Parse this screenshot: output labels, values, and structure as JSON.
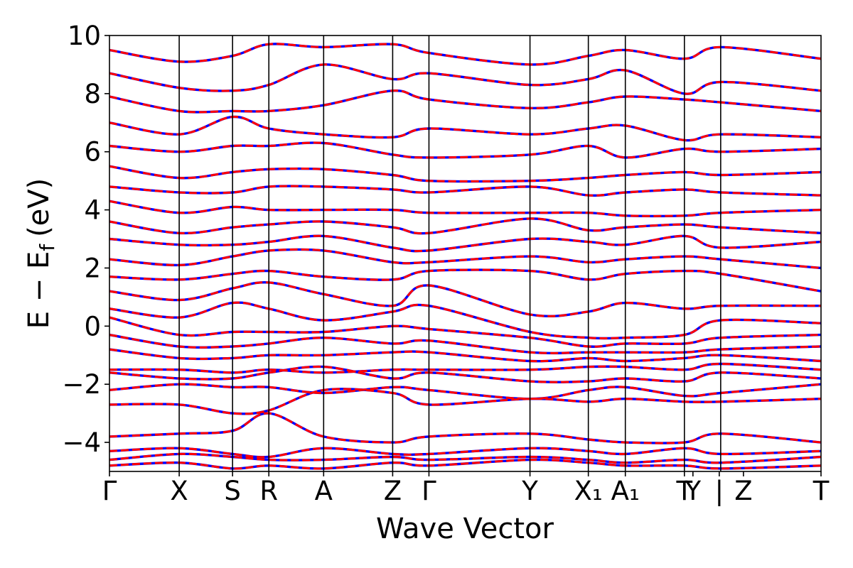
{
  "chart_data": {
    "type": "line",
    "title": "",
    "xlabel": "Wave Vector",
    "ylabel": "E − E_f (eV)",
    "ylabel_parts": {
      "main": "E − E",
      "sub": "f",
      "unit": "(eV)"
    },
    "ylim": [
      -5,
      10
    ],
    "yticks": [
      -4,
      -2,
      0,
      2,
      4,
      6,
      8,
      10
    ],
    "ytick_labels": [
      "−4",
      "−2",
      "0",
      "2",
      "4",
      "6",
      "8",
      "10"
    ],
    "xlim": [
      0,
      1
    ],
    "kpath": [
      {
        "label": "Γ",
        "x": 0.0
      },
      {
        "label": "X",
        "x": 0.098
      },
      {
        "label": "S",
        "x": 0.173
      },
      {
        "label": "R",
        "x": 0.224
      },
      {
        "label": "A",
        "x": 0.301
      },
      {
        "label": "Z",
        "x": 0.398
      },
      {
        "label": "Γ",
        "x": 0.449
      },
      {
        "label": "Y",
        "x": 0.591
      },
      {
        "label": "X₁",
        "x": 0.673
      },
      {
        "label": "A₁",
        "x": 0.725
      },
      {
        "label": "T",
        "x": 0.808
      },
      {
        "label": "Y",
        "x": 0.82
      },
      {
        "label": "|",
        "x": 0.857
      },
      {
        "label": "Z",
        "x": 0.891
      },
      {
        "label": "T",
        "x": 1.0
      }
    ],
    "vertical_lines": [
      0.098,
      0.173,
      0.224,
      0.301,
      0.398,
      0.449,
      0.591,
      0.673,
      0.725,
      0.808,
      0.859
    ],
    "series": [
      {
        "color": "#0000ff",
        "style": "solid",
        "x": [
          0.0,
          0.098,
          0.173,
          0.224,
          0.301,
          0.398,
          0.449,
          0.591,
          0.673,
          0.725,
          0.808,
          0.859,
          1.0
        ],
        "bands": [
          [
            -4.8,
            -4.7,
            -4.9,
            -4.8,
            -4.9,
            -4.7,
            -4.8,
            -4.6,
            -4.7,
            -4.8,
            -4.8,
            -4.9,
            -4.8
          ],
          [
            -4.6,
            -4.4,
            -4.5,
            -4.6,
            -4.6,
            -4.5,
            -4.6,
            -4.5,
            -4.6,
            -4.7,
            -4.6,
            -4.7,
            -4.5
          ],
          [
            -4.3,
            -4.2,
            -4.4,
            -4.5,
            -4.2,
            -4.4,
            -4.4,
            -4.2,
            -4.3,
            -4.4,
            -4.2,
            -4.4,
            -4.3
          ],
          [
            -3.8,
            -3.7,
            -3.6,
            -3.0,
            -3.8,
            -4.0,
            -3.8,
            -3.7,
            -3.9,
            -4.0,
            -4.0,
            -3.7,
            -4.0
          ],
          [
            -2.7,
            -2.7,
            -3.0,
            -2.9,
            -2.2,
            -2.3,
            -2.7,
            -2.5,
            -2.6,
            -2.5,
            -2.6,
            -2.6,
            -2.5
          ],
          [
            -2.2,
            -2.0,
            -2.1,
            -2.1,
            -2.3,
            -2.1,
            -2.2,
            -2.5,
            -2.2,
            -2.1,
            -2.4,
            -2.3,
            -2.0
          ],
          [
            -1.6,
            -1.8,
            -1.8,
            -1.6,
            -1.4,
            -1.8,
            -1.6,
            -1.9,
            -1.9,
            -1.8,
            -1.9,
            -1.6,
            -1.8
          ],
          [
            -1.5,
            -1.5,
            -1.6,
            -1.5,
            -1.6,
            -1.5,
            -1.5,
            -1.5,
            -1.4,
            -1.4,
            -1.5,
            -1.3,
            -1.5
          ],
          [
            -0.8,
            -1.1,
            -1.1,
            -1.0,
            -1.0,
            -0.9,
            -0.9,
            -1.2,
            -1.1,
            -1.2,
            -1.1,
            -1.0,
            -1.2
          ],
          [
            -0.3,
            -0.7,
            -0.7,
            -0.6,
            -0.4,
            -0.6,
            -0.5,
            -0.9,
            -0.9,
            -0.9,
            -0.9,
            -0.8,
            -0.7
          ],
          [
            0.3,
            -0.3,
            -0.2,
            -0.2,
            -0.2,
            0.0,
            -0.1,
            -0.4,
            -0.7,
            -0.6,
            -0.6,
            -0.4,
            -0.3
          ],
          [
            0.6,
            0.3,
            0.8,
            0.6,
            0.2,
            0.5,
            0.7,
            -0.2,
            -0.4,
            -0.4,
            -0.3,
            0.2,
            0.1
          ],
          [
            1.2,
            0.9,
            1.3,
            1.5,
            1.1,
            0.7,
            1.4,
            0.4,
            0.5,
            0.8,
            0.6,
            0.7,
            0.7
          ],
          [
            1.7,
            1.6,
            1.8,
            1.9,
            1.7,
            1.6,
            1.9,
            1.9,
            1.6,
            1.8,
            1.9,
            1.8,
            1.2
          ],
          [
            2.3,
            2.1,
            2.4,
            2.6,
            2.6,
            2.2,
            2.2,
            2.4,
            2.2,
            2.3,
            2.4,
            2.3,
            2.0
          ],
          [
            3.0,
            2.8,
            2.8,
            2.9,
            3.1,
            2.7,
            2.6,
            3.0,
            2.9,
            2.8,
            3.1,
            2.7,
            2.9
          ],
          [
            3.6,
            3.2,
            3.4,
            3.5,
            3.6,
            3.4,
            3.2,
            3.7,
            3.3,
            3.4,
            3.5,
            3.4,
            3.2
          ],
          [
            4.3,
            3.9,
            4.1,
            4.0,
            4.0,
            4.0,
            3.9,
            3.9,
            3.9,
            3.8,
            3.8,
            3.9,
            4.0
          ],
          [
            4.8,
            4.6,
            4.6,
            4.8,
            4.8,
            4.7,
            4.6,
            4.8,
            4.5,
            4.6,
            4.7,
            4.6,
            4.5
          ],
          [
            5.5,
            5.1,
            5.3,
            5.4,
            5.4,
            5.2,
            5.0,
            5.0,
            5.1,
            5.2,
            5.3,
            5.2,
            5.3
          ],
          [
            6.2,
            6.0,
            6.2,
            6.2,
            6.3,
            5.9,
            5.8,
            5.9,
            6.2,
            5.8,
            6.1,
            6.0,
            6.1
          ],
          [
            7.0,
            6.6,
            7.2,
            6.8,
            6.6,
            6.5,
            6.8,
            6.6,
            6.8,
            6.9,
            6.4,
            6.6,
            6.5
          ],
          [
            7.9,
            7.4,
            7.4,
            7.4,
            7.6,
            8.1,
            7.8,
            7.5,
            7.7,
            7.9,
            7.8,
            7.7,
            7.4
          ],
          [
            8.7,
            8.2,
            8.1,
            8.3,
            9.0,
            8.5,
            8.7,
            8.3,
            8.5,
            8.8,
            8.0,
            8.4,
            8.1
          ],
          [
            9.5,
            9.1,
            9.3,
            9.7,
            9.6,
            9.7,
            9.4,
            9.0,
            9.3,
            9.5,
            9.2,
            9.6,
            9.2
          ]
        ]
      },
      {
        "color": "#ff0000",
        "style": "dashed",
        "x": [
          0.0,
          0.098,
          0.173,
          0.224,
          0.301,
          0.398,
          0.449,
          0.591,
          0.673,
          0.725,
          0.808,
          0.859,
          1.0
        ],
        "bands": [
          [
            -4.8,
            -4.7,
            -4.9,
            -4.8,
            -4.9,
            -4.7,
            -4.8,
            -4.6,
            -4.7,
            -4.8,
            -4.8,
            -4.9,
            -4.8
          ],
          [
            -4.6,
            -4.4,
            -4.5,
            -4.6,
            -4.6,
            -4.5,
            -4.6,
            -4.5,
            -4.6,
            -4.7,
            -4.6,
            -4.7,
            -4.5
          ],
          [
            -4.3,
            -4.2,
            -4.4,
            -4.5,
            -4.2,
            -4.4,
            -4.4,
            -4.2,
            -4.3,
            -4.4,
            -4.2,
            -4.4,
            -4.3
          ],
          [
            -3.8,
            -3.7,
            -3.6,
            -3.0,
            -3.8,
            -4.0,
            -3.8,
            -3.7,
            -3.9,
            -4.0,
            -4.0,
            -3.7,
            -4.0
          ],
          [
            -2.7,
            -2.7,
            -3.0,
            -2.9,
            -2.2,
            -2.3,
            -2.7,
            -2.5,
            -2.6,
            -2.5,
            -2.6,
            -2.6,
            -2.5
          ],
          [
            -2.2,
            -2.0,
            -2.1,
            -2.1,
            -2.3,
            -2.1,
            -2.2,
            -2.5,
            -2.2,
            -2.1,
            -2.4,
            -2.3,
            -2.0
          ],
          [
            -1.6,
            -1.8,
            -1.8,
            -1.6,
            -1.4,
            -1.8,
            -1.6,
            -1.9,
            -1.9,
            -1.8,
            -1.9,
            -1.6,
            -1.8
          ],
          [
            -1.5,
            -1.5,
            -1.6,
            -1.5,
            -1.6,
            -1.5,
            -1.5,
            -1.5,
            -1.4,
            -1.4,
            -1.5,
            -1.3,
            -1.5
          ],
          [
            -0.8,
            -1.1,
            -1.1,
            -1.0,
            -1.0,
            -0.9,
            -0.9,
            -1.2,
            -1.1,
            -1.2,
            -1.1,
            -1.0,
            -1.2
          ],
          [
            -0.3,
            -0.7,
            -0.7,
            -0.6,
            -0.4,
            -0.6,
            -0.5,
            -0.9,
            -0.9,
            -0.9,
            -0.9,
            -0.8,
            -0.7
          ],
          [
            0.3,
            -0.3,
            -0.2,
            -0.2,
            -0.2,
            0.0,
            -0.1,
            -0.4,
            -0.7,
            -0.6,
            -0.6,
            -0.4,
            -0.3
          ],
          [
            0.6,
            0.3,
            0.8,
            0.6,
            0.2,
            0.5,
            0.7,
            -0.2,
            -0.4,
            -0.4,
            -0.3,
            0.2,
            0.1
          ],
          [
            1.2,
            0.9,
            1.3,
            1.5,
            1.1,
            0.7,
            1.4,
            0.4,
            0.5,
            0.8,
            0.6,
            0.7,
            0.7
          ],
          [
            1.7,
            1.6,
            1.8,
            1.9,
            1.7,
            1.6,
            1.9,
            1.9,
            1.6,
            1.8,
            1.9,
            1.8,
            1.2
          ],
          [
            2.3,
            2.1,
            2.4,
            2.6,
            2.6,
            2.2,
            2.2,
            2.4,
            2.2,
            2.3,
            2.4,
            2.3,
            2.0
          ],
          [
            3.0,
            2.8,
            2.8,
            2.9,
            3.1,
            2.7,
            2.6,
            3.0,
            2.9,
            2.8,
            3.1,
            2.7,
            2.9
          ],
          [
            3.6,
            3.2,
            3.4,
            3.5,
            3.6,
            3.4,
            3.2,
            3.7,
            3.3,
            3.4,
            3.5,
            3.4,
            3.2
          ],
          [
            4.3,
            3.9,
            4.1,
            4.0,
            4.0,
            4.0,
            3.9,
            3.9,
            3.9,
            3.8,
            3.8,
            3.9,
            4.0
          ],
          [
            4.8,
            4.6,
            4.6,
            4.8,
            4.8,
            4.7,
            4.6,
            4.8,
            4.5,
            4.6,
            4.7,
            4.6,
            4.5
          ],
          [
            5.5,
            5.1,
            5.3,
            5.4,
            5.4,
            5.2,
            5.0,
            5.0,
            5.1,
            5.2,
            5.3,
            5.2,
            5.3
          ],
          [
            6.2,
            6.0,
            6.2,
            6.2,
            6.3,
            5.9,
            5.8,
            5.9,
            6.2,
            5.8,
            6.1,
            6.0,
            6.1
          ],
          [
            7.0,
            6.6,
            7.2,
            6.8,
            6.6,
            6.5,
            6.8,
            6.6,
            6.8,
            6.9,
            6.4,
            6.6,
            6.5
          ],
          [
            7.9,
            7.4,
            7.4,
            7.4,
            7.6,
            8.1,
            7.8,
            7.5,
            7.7,
            7.9,
            7.8,
            7.7,
            7.4
          ],
          [
            8.7,
            8.2,
            8.1,
            8.3,
            9.0,
            8.5,
            8.7,
            8.3,
            8.5,
            8.8,
            8.0,
            8.4,
            8.1
          ],
          [
            9.5,
            9.1,
            9.3,
            9.7,
            9.6,
            9.7,
            9.4,
            9.0,
            9.3,
            9.5,
            9.2,
            9.6,
            9.2
          ]
        ]
      }
    ],
    "grid": false,
    "legend": "none"
  }
}
